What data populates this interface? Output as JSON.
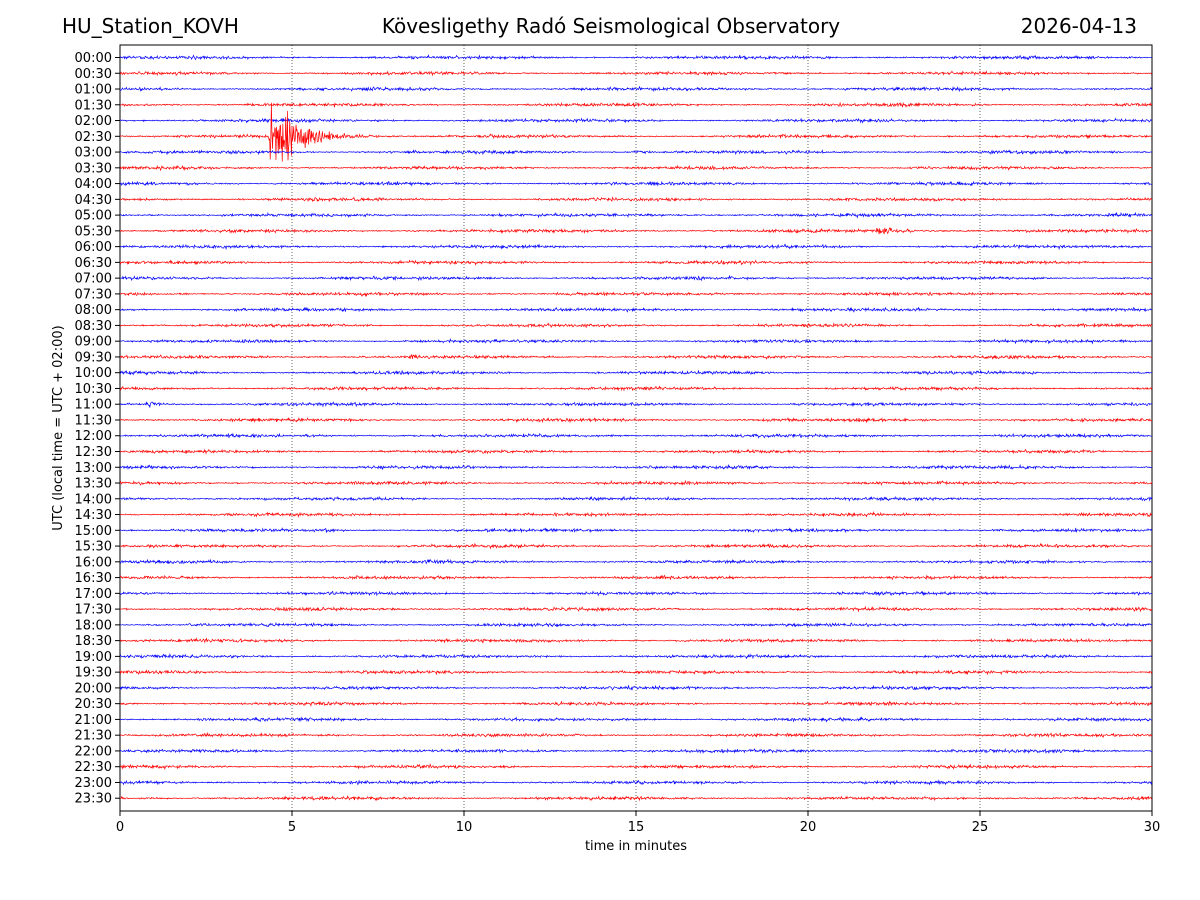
{
  "header": {
    "station": "HU_Station_KOVH",
    "observatory": "Kövesligethy Radó Seismological Observatory",
    "date": "2026-04-13"
  },
  "chart_data": {
    "type": "line",
    "title": "Kövesligethy Radó Seismological Observatory",
    "xlabel": "time in minutes",
    "ylabel": "UTC (local time = UTC + 02:00)",
    "xlim": [
      0,
      30
    ],
    "x_ticks": [
      0,
      5,
      10,
      15,
      20,
      25,
      30
    ],
    "x_grid": "dotted vertical at 5,10,15,20,25",
    "trace_colors": [
      "#0000ff",
      "#ff0000"
    ],
    "row_labels": [
      "00:00",
      "00:30",
      "01:00",
      "01:30",
      "02:00",
      "02:30",
      "03:00",
      "03:30",
      "04:00",
      "04:30",
      "05:00",
      "05:30",
      "06:00",
      "06:30",
      "07:00",
      "07:30",
      "08:00",
      "08:30",
      "09:00",
      "09:30",
      "10:00",
      "10:30",
      "11:00",
      "11:30",
      "12:00",
      "12:30",
      "13:00",
      "13:30",
      "14:00",
      "14:30",
      "15:00",
      "15:30",
      "16:00",
      "16:30",
      "17:00",
      "17:30",
      "18:00",
      "18:30",
      "19:00",
      "19:30",
      "20:00",
      "20:30",
      "21:00",
      "21:30",
      "22:00",
      "22:30",
      "23:00",
      "23:30"
    ],
    "events": [
      {
        "row": "02:30",
        "start_min": 4.3,
        "peak_min": 4.4,
        "duration_min": 2.0,
        "peak_amplitude_rows": 2.5,
        "note": "large event with secondary burst"
      },
      {
        "row": "02:30",
        "start_min": 5.5,
        "peak_min": 5.6,
        "duration_min": 0.8,
        "peak_amplitude_rows": 0.35
      },
      {
        "row": "05:30",
        "start_min": 21.9,
        "peak_min": 22.0,
        "duration_min": 1.5,
        "peak_amplitude_rows": 0.25
      },
      {
        "row": "11:00",
        "start_min": 0.7,
        "peak_min": 0.9,
        "duration_min": 0.5,
        "peak_amplitude_rows": 0.2
      },
      {
        "row": "09:30",
        "start_min": 8.3,
        "peak_min": 8.6,
        "duration_min": 0.6,
        "peak_amplitude_rows": 0.12
      },
      {
        "row": "15:00",
        "start_min": 5.8,
        "peak_min": 6.0,
        "duration_min": 0.5,
        "peak_amplitude_rows": 0.12
      },
      {
        "row": "03:00",
        "start_min": 14.9,
        "peak_min": 15.1,
        "duration_min": 0.5,
        "peak_amplitude_rows": 0.1
      }
    ],
    "background_noise_rows": 0.08
  }
}
